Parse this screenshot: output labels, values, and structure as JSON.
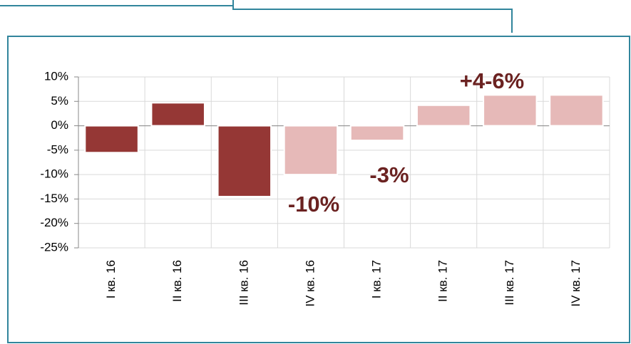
{
  "chart_data": {
    "type": "bar",
    "categories": [
      "I кв. 16",
      "II кв. 16",
      "III кв. 16",
      "IV кв. 16",
      "I кв. 17",
      "II кв. 17",
      "III кв. 17",
      "IV кв. 17"
    ],
    "values": [
      -5.5,
      4.7,
      -14.5,
      -10,
      -3,
      4.2,
      6.3,
      6.3
    ],
    "colors": [
      "#953735",
      "#953735",
      "#953735",
      "#e6b9b8",
      "#e6b9b8",
      "#e6b9b8",
      "#e6b9b8",
      "#e6b9b8"
    ],
    "ylim": [
      -25,
      10
    ],
    "yticks": [
      {
        "value": -25,
        "label": "-25%"
      },
      {
        "value": -20,
        "label": "-20%"
      },
      {
        "value": -15,
        "label": "-15%"
      },
      {
        "value": -10,
        "label": "-10%"
      },
      {
        "value": -5,
        "label": "-5%"
      },
      {
        "value": 0,
        "label": "0%"
      },
      {
        "value": 5,
        "label": "5%"
      },
      {
        "value": 10,
        "label": "10%"
      }
    ],
    "grid": true,
    "annotations": [
      "+4-6%",
      "-10%",
      "-3%"
    ]
  }
}
